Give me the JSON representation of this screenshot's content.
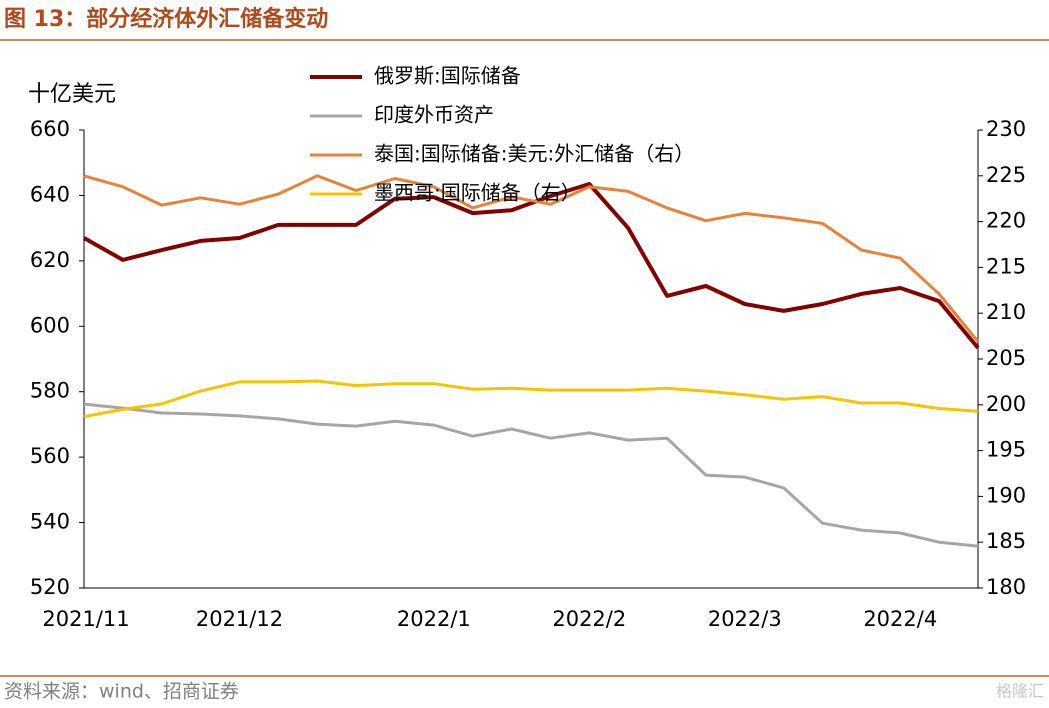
{
  "chart_data": {
    "type": "line",
    "title": "图 13：部分经济体外汇储备变动",
    "ylabel": "十亿美元",
    "source": "资料来源：wind、招商证券",
    "watermark": "格隆汇",
    "categories": [
      "2021/11",
      null,
      null,
      null,
      "2021/12",
      null,
      null,
      null,
      null,
      "2022/1",
      null,
      null,
      null,
      "2022/2",
      null,
      null,
      null,
      "2022/3",
      null,
      null,
      null,
      "2022/4",
      null,
      null
    ],
    "ylim": [
      520,
      660
    ],
    "yticks": [
      520,
      540,
      560,
      580,
      600,
      620,
      640,
      660
    ],
    "y2lim": [
      180,
      230
    ],
    "y2ticks": [
      180,
      185,
      190,
      195,
      200,
      205,
      210,
      215,
      220,
      225,
      230
    ],
    "legend": "top",
    "series": [
      {
        "name": "俄罗斯:国际储备",
        "color": "#800000",
        "axis": "y",
        "values": [
          627,
          620.3,
          623.3,
          626.1,
          627,
          631,
          631,
          631,
          639,
          639.5,
          634.6,
          635.5,
          639.8,
          643.5,
          630,
          609.3,
          612.3,
          606.8,
          604.7,
          606.8,
          609.9,
          611.7,
          607.7,
          593.4
        ]
      },
      {
        "name": "印度外币资产",
        "color": "#a6a6a6",
        "axis": "y",
        "values": [
          576.2,
          575,
          573.5,
          573.2,
          572.6,
          571.7,
          570.1,
          569.5,
          571,
          569.8,
          566.4,
          568.6,
          565.8,
          567.4,
          565.2,
          565.8,
          554.5,
          553.9,
          550.6,
          539.8,
          537.7,
          536.8,
          534,
          532.8
        ]
      },
      {
        "name": "泰国:国际储备:美元:外汇储备（右）",
        "color": "#e8823a",
        "axis": "y2",
        "values": [
          225,
          223.8,
          221.8,
          222.6,
          221.9,
          223,
          225,
          223.4,
          224.7,
          223.8,
          221.5,
          222.7,
          221.9,
          223.8,
          223.3,
          221.5,
          220.1,
          220.9,
          220.4,
          219.8,
          216.9,
          216,
          212.1,
          206.9
        ]
      },
      {
        "name": "墨西哥:国际储备（右）",
        "color": "#f5c400",
        "axis": "y2",
        "values": [
          198.7,
          199.5,
          200.1,
          201.5,
          202.5,
          202.5,
          202.6,
          202.1,
          202.3,
          202.3,
          201.7,
          201.8,
          201.6,
          201.6,
          201.6,
          201.8,
          201.5,
          201.1,
          200.6,
          200.9,
          200.2,
          200.2,
          199.6,
          199.3
        ]
      }
    ]
  }
}
